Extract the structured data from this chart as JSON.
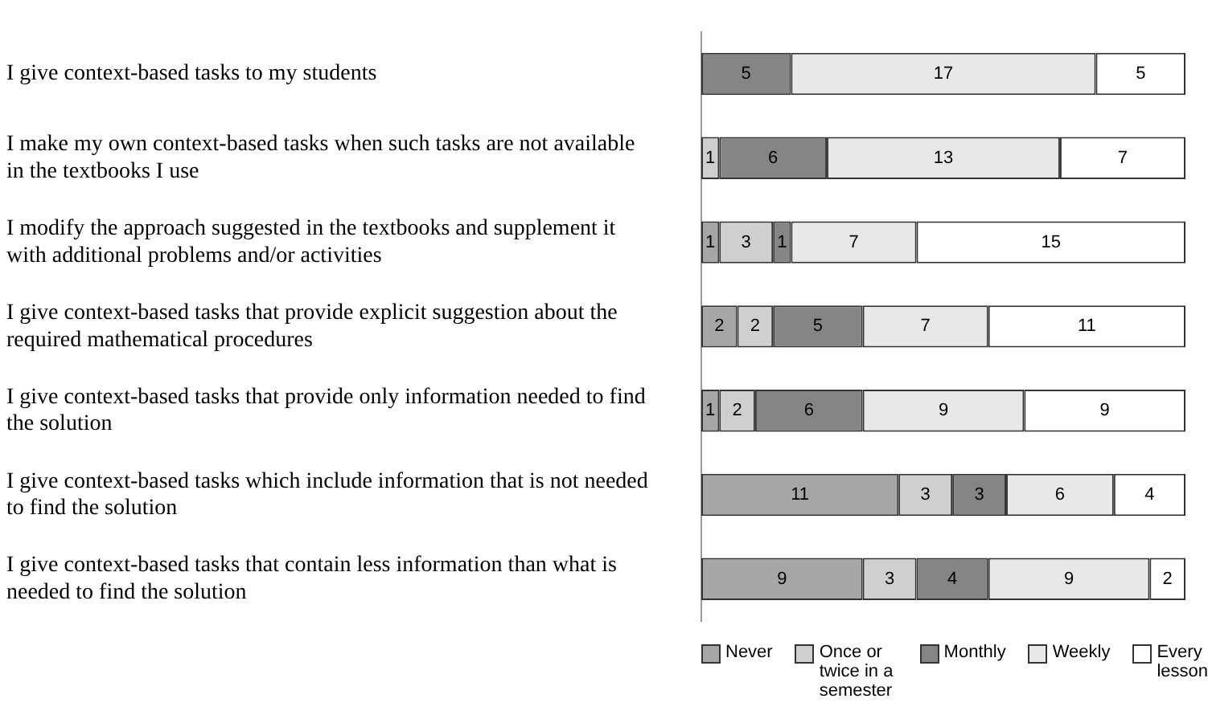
{
  "chart_data": {
    "type": "bar",
    "orientation": "horizontal",
    "stacked": true,
    "data_labels": true,
    "legend": "bottom",
    "grid": false,
    "tick_labels": "y",
    "xlim": [
      0,
      27
    ],
    "categories": [
      "I give context-based tasks to my students",
      "I make my own context-based tasks when such tasks are not available in the textbooks I use",
      "I modify the approach suggested in the textbooks and supplement it with additional problems and/or activities",
      "I give context-based tasks that provide explicit suggestion about the required mathematical procedures",
      "I give context-based tasks that provide only information needed to find the solution",
      "I give context-based tasks which include information that is not needed to find the solution",
      "I give context-based tasks that contain less information than what is needed to find the solution"
    ],
    "series": [
      {
        "name": "Never",
        "color": "#a6a6a6",
        "values": [
          null,
          null,
          1,
          2,
          1,
          11,
          9
        ]
      },
      {
        "name": "Once or twice in a semester",
        "color": "#cfcfcf",
        "values": [
          null,
          1,
          3,
          2,
          2,
          3,
          3
        ]
      },
      {
        "name": "Monthly",
        "color": "#858585",
        "values": [
          5,
          6,
          1,
          5,
          6,
          3,
          4
        ]
      },
      {
        "name": "Weekly",
        "color": "#e8e8e8",
        "values": [
          17,
          13,
          7,
          7,
          9,
          6,
          9
        ]
      },
      {
        "name": "Every lesson",
        "color": "#ffffff",
        "values": [
          5,
          7,
          15,
          11,
          9,
          4,
          2
        ]
      }
    ]
  }
}
